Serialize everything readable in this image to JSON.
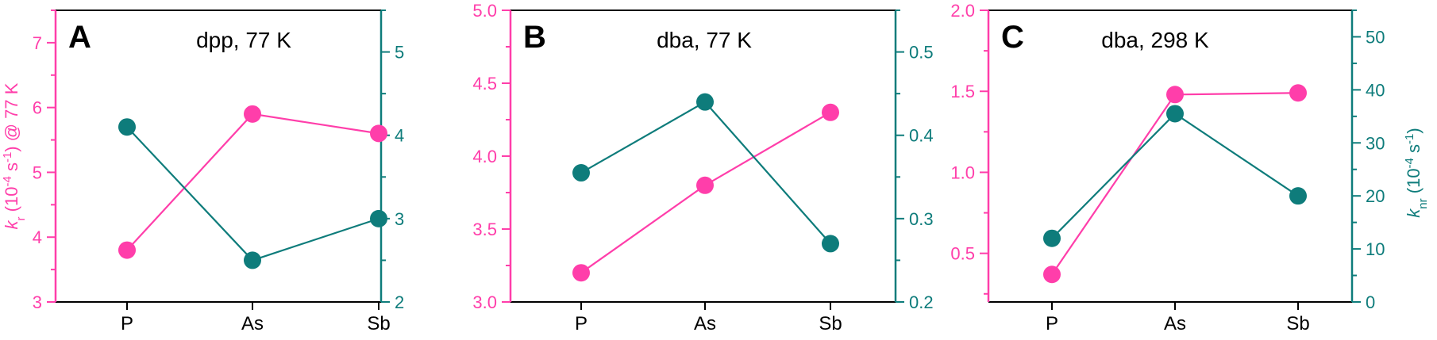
{
  "colors": {
    "kr": "#ff3eaa",
    "knr": "#0e7c7b",
    "axis": "#000000"
  },
  "chart_data": [
    {
      "type": "line",
      "panel_letter": "A",
      "title": "dpp, 77 K",
      "categories": [
        "P",
        "As",
        "Sb"
      ],
      "ylabel_left": "k_r (10^-4 s^-1) @ 77 K",
      "ylabel_left_parts": {
        "italic": "k",
        "sub": "r",
        "before_sup": " (10",
        "sup": "-4",
        "mid": " s",
        "sup2": "-1",
        "after": ") @ 77 K"
      },
      "ylabel_right": "",
      "ylim_left": [
        3,
        7.5
      ],
      "yticks_left": [
        "3",
        "4",
        "5",
        "6",
        "7"
      ],
      "yticks_left_values": [
        3,
        4,
        5,
        6,
        7
      ],
      "ylim_right": [
        2,
        5.5
      ],
      "yticks_right": [
        "2",
        "3",
        "4",
        "5"
      ],
      "yticks_right_values": [
        2,
        3,
        4,
        5
      ],
      "series": [
        {
          "axis": "left",
          "color": "kr",
          "values": [
            3.8,
            5.9,
            5.6
          ]
        },
        {
          "axis": "right",
          "color": "knr",
          "values": [
            4.1,
            2.5,
            3.0
          ]
        }
      ]
    },
    {
      "type": "line",
      "panel_letter": "B",
      "title": "dba, 77 K",
      "categories": [
        "P",
        "As",
        "Sb"
      ],
      "ylabel_left": "",
      "ylabel_right": "",
      "ylim_left": [
        3.0,
        5.0
      ],
      "yticks_left": [
        "3.0",
        "3.5",
        "4.0",
        "4.5",
        "5.0"
      ],
      "yticks_left_values": [
        3.0,
        3.5,
        4.0,
        4.5,
        5.0
      ],
      "ylim_right": [
        0.2,
        0.55
      ],
      "yticks_right": [
        "0.2",
        "0.3",
        "0.4",
        "0.5"
      ],
      "yticks_right_values": [
        0.2,
        0.3,
        0.4,
        0.5
      ],
      "series": [
        {
          "axis": "left",
          "color": "kr",
          "values": [
            3.2,
            3.8,
            4.3
          ]
        },
        {
          "axis": "right",
          "color": "knr",
          "values": [
            0.355,
            0.44,
            0.27
          ]
        }
      ]
    },
    {
      "type": "line",
      "panel_letter": "C",
      "title": "dba, 298 K",
      "categories": [
        "P",
        "As",
        "Sb"
      ],
      "ylabel_left": "",
      "ylabel_right": "k_nr (10^-4 s^-1)",
      "ylabel_right_parts": {
        "italic": "k",
        "sub": "nr",
        "before_sup": " (10",
        "sup": "-4",
        "mid": " s",
        "sup2": "-1",
        "after": ")"
      },
      "ylim_left": [
        0.2,
        2.0
      ],
      "yticks_left": [
        "0.5",
        "1.0",
        "1.5",
        "2.0"
      ],
      "yticks_left_values": [
        0.5,
        1.0,
        1.5,
        2.0
      ],
      "ylim_right": [
        0,
        55
      ],
      "yticks_right": [
        "0",
        "10",
        "20",
        "30",
        "40",
        "50"
      ],
      "yticks_right_values": [
        0,
        10,
        20,
        30,
        40,
        50
      ],
      "series": [
        {
          "axis": "left",
          "color": "kr",
          "values": [
            0.37,
            1.48,
            1.49
          ]
        },
        {
          "axis": "right",
          "color": "knr",
          "values": [
            12,
            35.5,
            20
          ]
        }
      ]
    }
  ]
}
